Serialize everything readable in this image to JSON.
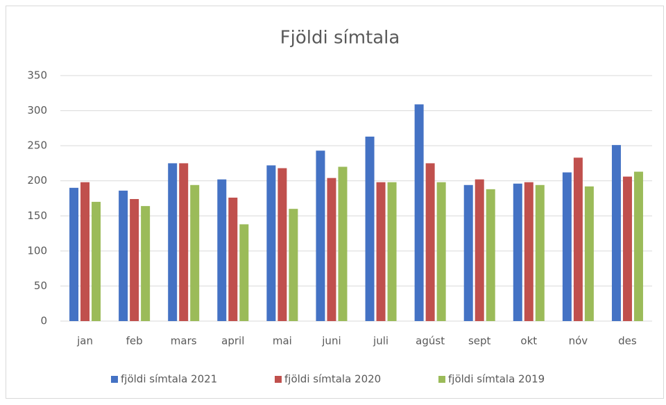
{
  "chart_data": {
    "type": "bar",
    "title": "Fjöldi símtala",
    "categories": [
      "jan",
      "feb",
      "mars",
      "april",
      "mai",
      "juni",
      "juli",
      "agúst",
      "sept",
      "okt",
      "nóv",
      "des"
    ],
    "series": [
      {
        "name": "fjöldi símtala 2021",
        "color": "#4472c4",
        "values": [
          190,
          186,
          225,
          202,
          222,
          243,
          263,
          309,
          194,
          196,
          212,
          251
        ]
      },
      {
        "name": "fjöldi símtala 2020",
        "color": "#c0504d",
        "values": [
          198,
          174,
          225,
          176,
          218,
          204,
          198,
          225,
          202,
          198,
          233,
          206
        ]
      },
      {
        "name": "fjöldi símtala 2019",
        "color": "#9bbb59",
        "values": [
          170,
          164,
          194,
          138,
          160,
          220,
          198,
          198,
          188,
          194,
          192,
          213
        ]
      }
    ],
    "ylim": [
      0,
      350
    ],
    "yticks": [
      0,
      50,
      100,
      150,
      200,
      250,
      300,
      350
    ],
    "grid": true,
    "legend": "bottom"
  }
}
